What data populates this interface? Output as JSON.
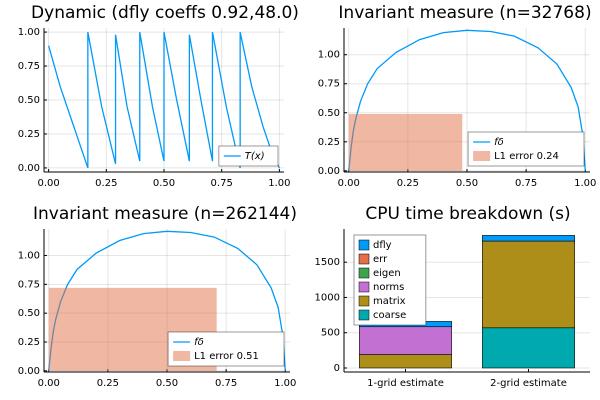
{
  "chart_data": [
    {
      "type": "line",
      "title": "Dynamic (dfly coeffs 0.92,48.0)",
      "xlim": [
        -0.02,
        1.02
      ],
      "ylim": [
        -0.03,
        1.03
      ],
      "xticks": [
        {
          "value": 0,
          "label": "0.00"
        },
        {
          "value": 0.25,
          "label": "0.25"
        },
        {
          "value": 0.5,
          "label": "0.50"
        },
        {
          "value": 0.75,
          "label": "0.75"
        },
        {
          "value": 1,
          "label": "1.00"
        }
      ],
      "yticks": [
        {
          "value": 0,
          "label": "0.00"
        },
        {
          "value": 0.25,
          "label": "0.25"
        },
        {
          "value": 0.5,
          "label": "0.50"
        },
        {
          "value": 0.75,
          "label": "0.75"
        },
        {
          "value": 1,
          "label": "1.00"
        }
      ],
      "grid": true,
      "legend": "bottom right",
      "series": [
        {
          "name": "T(x)",
          "color": "#009af9",
          "x": [
            0,
            0.05,
            0.1,
            0.17,
            0.17,
            0.23,
            0.29,
            0.29,
            0.34,
            0.395,
            0.395,
            0.45,
            0.5,
            0.5,
            0.555,
            0.61,
            0.61,
            0.66,
            0.71,
            0.71,
            0.77,
            0.83,
            0.83,
            0.88,
            0.93,
            0.97,
            1.0
          ],
          "values": [
            0.9,
            0.6,
            0.35,
            0.0,
            1.0,
            0.45,
            0.03,
            0.98,
            0.45,
            0.05,
            1.0,
            0.45,
            0.05,
            1.0,
            0.5,
            0.05,
            0.98,
            0.5,
            0.05,
            1.0,
            0.45,
            0.0,
            1.0,
            0.6,
            0.3,
            0.1,
            0.0
          ]
        }
      ]
    },
    {
      "type": "line",
      "title": "Invariant measure (n=32768)",
      "xlim": [
        -0.02,
        1.02
      ],
      "ylim": [
        -0.01,
        1.23
      ],
      "xticks": [
        {
          "value": 0,
          "label": "0.00"
        },
        {
          "value": 0.25,
          "label": "0.25"
        },
        {
          "value": 0.5,
          "label": "0.50"
        },
        {
          "value": 0.75,
          "label": "0.75"
        },
        {
          "value": 1,
          "label": "1.00"
        }
      ],
      "yticks": [
        {
          "value": 0,
          "label": "0.00"
        },
        {
          "value": 0.25,
          "label": "0.25"
        },
        {
          "value": 0.5,
          "label": "0.50"
        },
        {
          "value": 0.75,
          "label": "0.75"
        },
        {
          "value": 1,
          "label": "1.00"
        }
      ],
      "grid": true,
      "legend": "bottom right",
      "series": [
        {
          "name": "fδ",
          "color": "#009af9",
          "x": [
            0,
            0.01,
            0.02,
            0.03,
            0.05,
            0.08,
            0.12,
            0.2,
            0.3,
            0.4,
            0.5,
            0.6,
            0.7,
            0.8,
            0.88,
            0.94,
            0.97,
            0.99,
            1.0
          ],
          "values": [
            0,
            0.2,
            0.35,
            0.45,
            0.6,
            0.75,
            0.88,
            1.02,
            1.13,
            1.19,
            1.21,
            1.2,
            1.16,
            1.06,
            0.92,
            0.72,
            0.55,
            0.3,
            0
          ]
        },
        {
          "name": "L1 error 0.24",
          "color": "#e26f46",
          "bins": [
            0,
            0.48
          ],
          "values": [
            0.49
          ]
        }
      ]
    },
    {
      "type": "line",
      "title": "Invariant measure (n=262144)",
      "xlim": [
        -0.02,
        1.02
      ],
      "ylim": [
        -0.01,
        1.23
      ],
      "xticks": [
        {
          "value": 0,
          "label": "0.00"
        },
        {
          "value": 0.25,
          "label": "0.25"
        },
        {
          "value": 0.5,
          "label": "0.50"
        },
        {
          "value": 0.75,
          "label": "0.75"
        },
        {
          "value": 1,
          "label": "1.00"
        }
      ],
      "yticks": [
        {
          "value": 0,
          "label": "0.00"
        },
        {
          "value": 0.25,
          "label": "0.25"
        },
        {
          "value": 0.5,
          "label": "0.50"
        },
        {
          "value": 0.75,
          "label": "0.75"
        },
        {
          "value": 1,
          "label": "1.00"
        }
      ],
      "grid": true,
      "legend": "bottom right",
      "series": [
        {
          "name": "fδ",
          "color": "#009af9",
          "x": [
            0,
            0.01,
            0.02,
            0.03,
            0.05,
            0.08,
            0.12,
            0.2,
            0.3,
            0.4,
            0.5,
            0.6,
            0.7,
            0.8,
            0.88,
            0.94,
            0.97,
            0.99,
            1.0
          ],
          "values": [
            0,
            0.2,
            0.35,
            0.45,
            0.6,
            0.75,
            0.88,
            1.02,
            1.13,
            1.19,
            1.21,
            1.2,
            1.16,
            1.06,
            0.92,
            0.72,
            0.55,
            0.3,
            0
          ]
        },
        {
          "name": "L1 error 0.51",
          "color": "#e26f46",
          "bins": [
            0,
            0.71
          ],
          "values": [
            0.72
          ]
        }
      ]
    },
    {
      "type": "bar",
      "stacked": true,
      "title": "CPU time breakdown (s)",
      "ylim": [
        -57,
        1971
      ],
      "yticks": [
        0,
        500,
        1000,
        1500
      ],
      "grid": true,
      "legend": "top left",
      "categories": [
        "1-grid estimate",
        "2-grid estimate"
      ],
      "series": [
        {
          "name": "dfly",
          "color": "#009af9",
          "values": [
            75,
            80
          ]
        },
        {
          "name": "err",
          "color": "#e26f46",
          "values": [
            0,
            0
          ]
        },
        {
          "name": "eigen",
          "color": "#3da44d",
          "values": [
            0,
            0
          ]
        },
        {
          "name": "norms",
          "color": "#c271d2",
          "values": [
            395,
            0
          ]
        },
        {
          "name": "matrix",
          "color": "#ac8e18",
          "values": [
            190,
            1230
          ]
        },
        {
          "name": "coarse",
          "color": "#00a9ad",
          "values": [
            0,
            570
          ]
        }
      ]
    }
  ]
}
